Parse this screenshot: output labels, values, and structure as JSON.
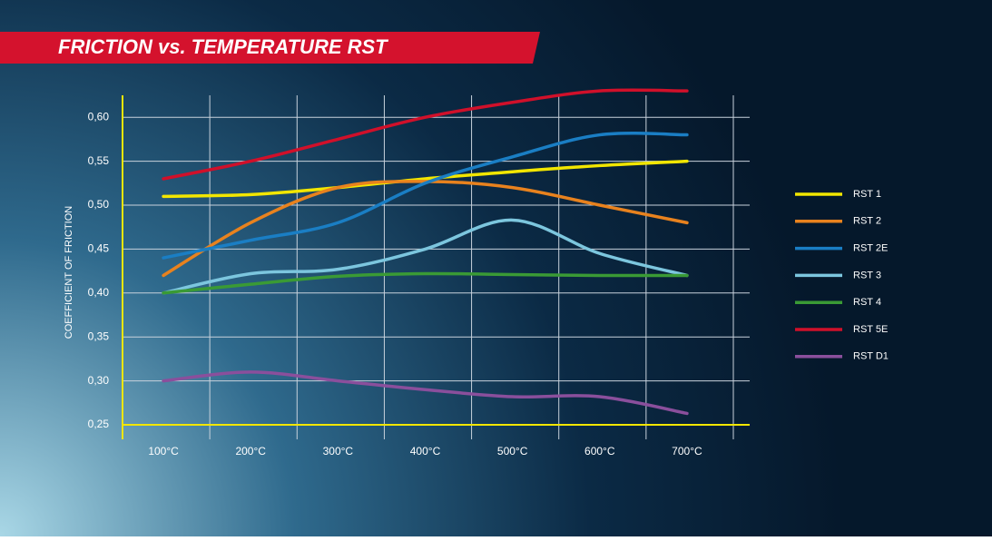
{
  "chart_data": {
    "type": "line",
    "title": "FRICTION vs. TEMPERATURE RST",
    "y_label": "COEFFICIENT OF FRICTION",
    "categories": [
      "100°C",
      "200°C",
      "300°C",
      "400°C",
      "500°C",
      "600°C",
      "700°C"
    ],
    "ylim": [
      0.25,
      0.625
    ],
    "yticks": [
      {
        "value": 0.25,
        "label": "0,25"
      },
      {
        "value": 0.3,
        "label": "0,30"
      },
      {
        "value": 0.35,
        "label": "0,35"
      },
      {
        "value": 0.4,
        "label": "0,40"
      },
      {
        "value": 0.45,
        "label": "0,45"
      },
      {
        "value": 0.5,
        "label": "0,50"
      },
      {
        "value": 0.55,
        "label": "0,55"
      },
      {
        "value": 0.6,
        "label": "0,60"
      }
    ],
    "grid": true,
    "legend": "right",
    "series": [
      {
        "name": "RST 1",
        "color": "#f2e600",
        "values": [
          0.51,
          0.512,
          0.52,
          0.53,
          0.538,
          0.545,
          0.55
        ]
      },
      {
        "name": "RST 2",
        "color": "#e8821e",
        "values": [
          0.42,
          0.48,
          0.52,
          0.527,
          0.52,
          0.5,
          0.48
        ]
      },
      {
        "name": "RST 2E",
        "color": "#1a7ec4",
        "values": [
          0.44,
          0.46,
          0.48,
          0.525,
          0.555,
          0.58,
          0.58
        ]
      },
      {
        "name": "RST 3",
        "color": "#7cc6de",
        "values": [
          0.4,
          0.422,
          0.427,
          0.45,
          0.483,
          0.445,
          0.42
        ]
      },
      {
        "name": "RST 4",
        "color": "#3a9a35",
        "values": [
          0.4,
          0.41,
          0.419,
          0.422,
          0.421,
          0.42,
          0.42
        ]
      },
      {
        "name": "RST 5E",
        "color": "#d0102a",
        "values": [
          0.53,
          0.55,
          0.575,
          0.6,
          0.617,
          0.63,
          0.63
        ]
      },
      {
        "name": "RST D1",
        "color": "#8a4f9c",
        "values": [
          0.3,
          0.31,
          0.3,
          0.29,
          0.282,
          0.282,
          0.263
        ]
      }
    ]
  }
}
